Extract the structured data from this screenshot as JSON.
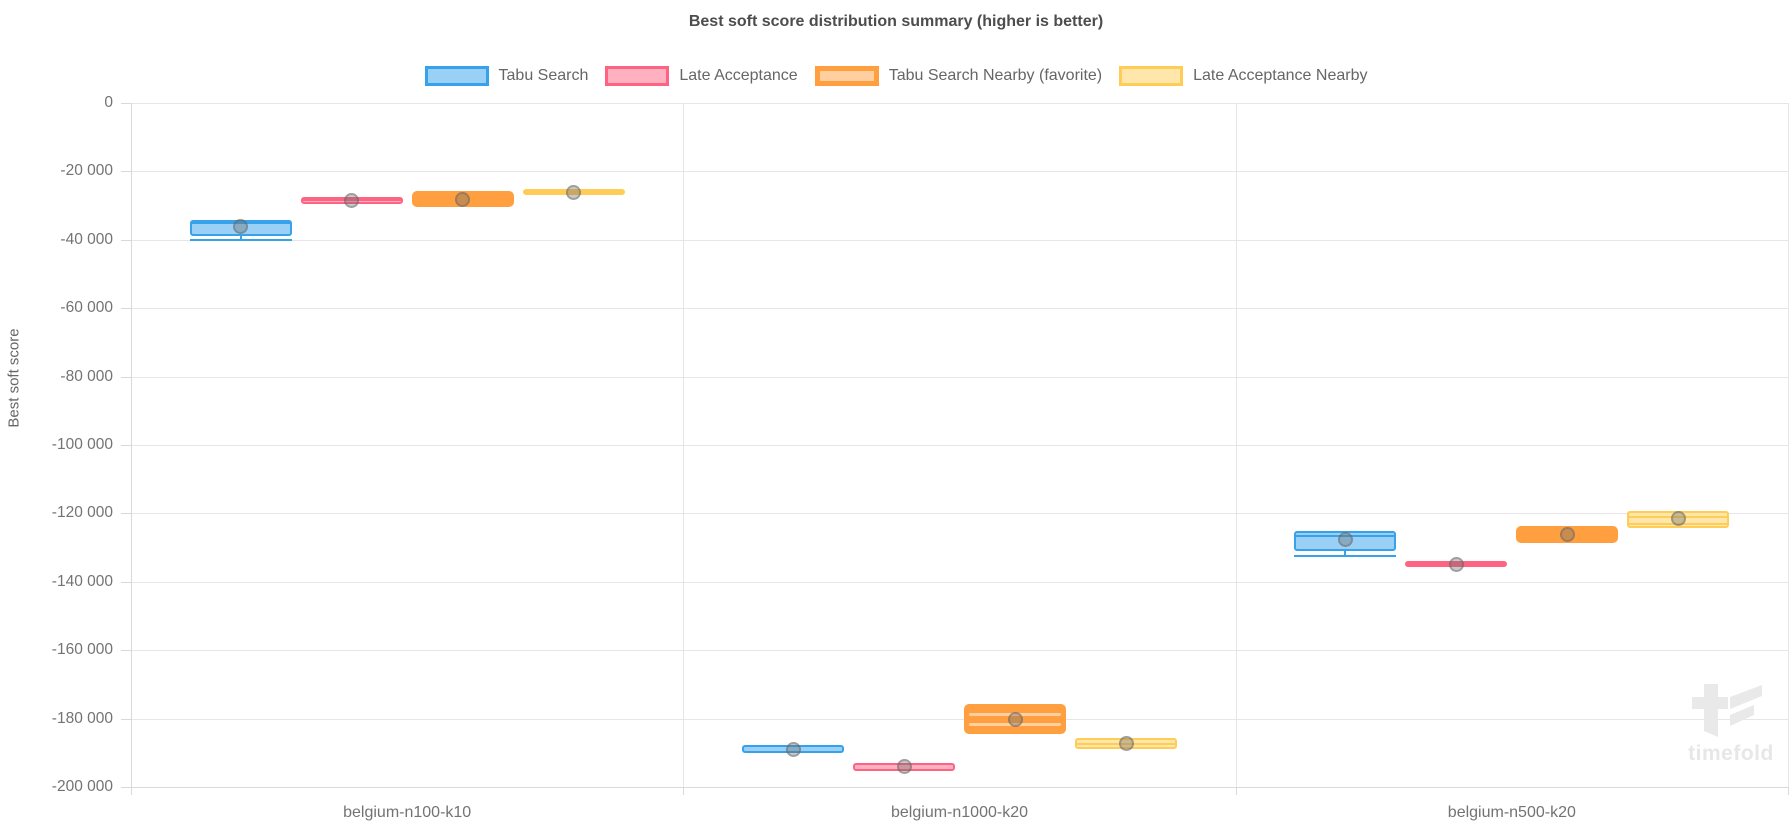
{
  "watermark": "timefold",
  "chart_data": {
    "type": "boxplot",
    "title": "Best soft score distribution summary (higher is better)",
    "ylabel": "Best soft score",
    "ylim": [
      -200000,
      0
    ],
    "ytick_step": 20000,
    "ytick_labels": [
      "0",
      "-20 000",
      "-40 000",
      "-60 000",
      "-80 000",
      "-100 000",
      "-120 000",
      "-140 000",
      "-160 000",
      "-180 000",
      "-200 000"
    ],
    "categories": [
      "belgium-n100-k10",
      "belgium-n1000-k20",
      "belgium-n500-k20"
    ],
    "legend_position": "top",
    "grid": true,
    "series": [
      {
        "name": "Tabu Search",
        "color": "#36A2EB",
        "fill_color": "#9AD0F5",
        "style": "outlined",
        "boxes": [
          {
            "q1": -38900,
            "q3": -34100,
            "median": -35100,
            "mean": -36000,
            "whisker_low": -39900
          },
          {
            "q1": -190000,
            "q3": -187700,
            "mean": -188900
          },
          {
            "q1": -130900,
            "q3": -125000,
            "median": -126500,
            "mean": -127500,
            "whisker_low": -132200
          }
        ]
      },
      {
        "name": "Late Acceptance",
        "color": "#FF6384",
        "fill_color": "#FFB1C1",
        "style": "outlined",
        "boxes": [
          {
            "q1": -29600,
            "q3": -27400,
            "median": -28500,
            "mean": -28600
          },
          {
            "q1": -195400,
            "q3": -193000,
            "mean": -194100
          },
          {
            "q1": -135800,
            "q3": -133900,
            "median": -134800,
            "mean": -134800
          }
        ]
      },
      {
        "name": "Tabu Search Nearby (favorite)",
        "color": "#FF9F40",
        "fill_color": "#FFCF9F",
        "style": "solid",
        "favorite": true,
        "boxes": [
          {
            "q1": -30500,
            "q3": -25700,
            "mean": -28200
          },
          {
            "q1": -184600,
            "q3": -175600,
            "median": -178700,
            "median2": -181600,
            "mean": -180400
          },
          {
            "q1": -128800,
            "q3": -123600,
            "mean": -126300
          }
        ]
      },
      {
        "name": "Late Acceptance Nearby",
        "color": "#FFCD56",
        "fill_color": "#FFE6AA",
        "style": "outlined",
        "boxes": [
          {
            "q1": -26900,
            "q3": -25000,
            "median": -26100,
            "mean": -26200
          },
          {
            "q1": -189000,
            "q3": -185600,
            "median": -187300,
            "mean": -187400
          },
          {
            "q1": -124400,
            "q3": -119200,
            "median": -121000,
            "median2": -123200,
            "mean": -121600
          }
        ]
      }
    ]
  }
}
